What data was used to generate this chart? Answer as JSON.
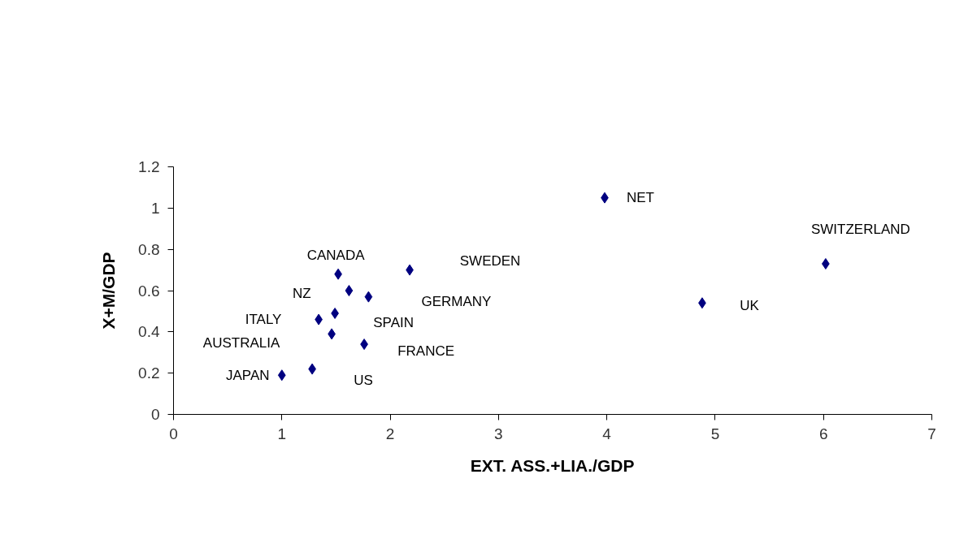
{
  "chart_data": {
    "type": "scatter",
    "xlabel": "EXT. ASS.+LIA./GDP",
    "ylabel": "X+M/GDP",
    "x": [
      1.0,
      1.28,
      1.46,
      1.34,
      1.49,
      1.52,
      1.62,
      1.8,
      1.76,
      2.18,
      3.98,
      4.88,
      6.02
    ],
    "series": [
      {
        "color": "#000080",
        "values": [
          0.19,
          0.22,
          0.39,
          0.46,
          0.49,
          0.68,
          0.6,
          0.57,
          0.34,
          0.7,
          1.05,
          0.54,
          0.73
        ]
      }
    ],
    "annotations": [
      {
        "text": "JAPAN",
        "x": 1.0,
        "y": 0.19
      },
      "US",
      "AUSTRALIA",
      {
        "text": "ITALY",
        "x": 1.34,
        "y": 0.46
      },
      {
        "text": "SPAIN",
        "x": 1.49,
        "y": 0.49
      },
      {
        "text": "CANADA",
        "x": 1.52,
        "y": 0.68
      },
      {
        "text": "NZ",
        "x": 1.62,
        "y": 0.6
      },
      "GERMANY",
      {
        "text": "FRANCE",
        "x": 1.76,
        "y": 0.34
      },
      "SWEDEN",
      {
        "text": "NET",
        "x": 3.98,
        "y": 1.05
      },
      {
        "text": "UK",
        "x": 4.88,
        "y": 0.54
      },
      {
        "text": "SWITZERLAND",
        "x": 6.02,
        "y": 0.73
      }
    ],
    "xlim": [
      0,
      7
    ],
    "ylim": [
      0,
      1.2
    ],
    "xticks": [
      0,
      1,
      2,
      3,
      4,
      5,
      6,
      7
    ],
    "yticks": [
      0,
      0.2,
      0.4,
      0.6,
      0.8,
      1,
      1.2
    ],
    "marker": "diamond",
    "grid": false
  }
}
